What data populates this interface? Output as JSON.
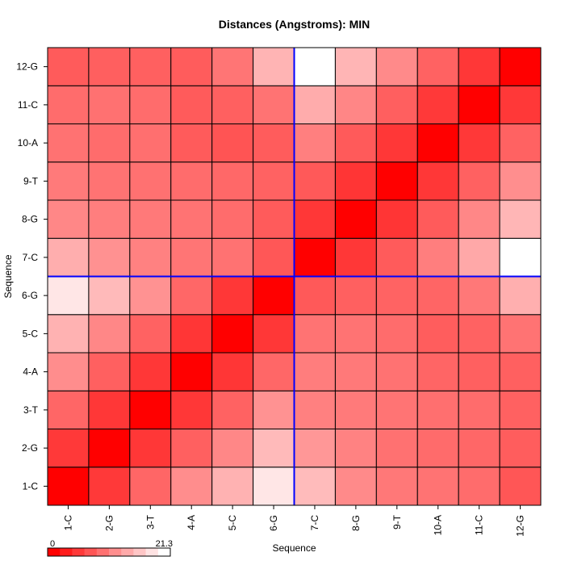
{
  "chart_data": {
    "type": "heatmap",
    "title": "Distances (Angstroms):  MIN",
    "xlabel": "Sequence",
    "ylabel": "Sequence",
    "x_categories": [
      "1-C",
      "2-G",
      "3-T",
      "4-A",
      "5-C",
      "6-G",
      "7-C",
      "8-G",
      "9-T",
      "10-A",
      "11-C",
      "12-G"
    ],
    "y_categories": [
      "1-C",
      "2-G",
      "3-T",
      "4-A",
      "5-C",
      "6-G",
      "7-C",
      "8-G",
      "9-T",
      "10-A",
      "11-C",
      "12-G"
    ],
    "values": [
      [
        0.0,
        4.8,
        8.5,
        11.8,
        14.9,
        19.2,
        15.6,
        11.5,
        10.0,
        9.6,
        9.0,
        7.2
      ],
      [
        4.8,
        0.0,
        4.6,
        8.0,
        11.3,
        15.5,
        12.6,
        10.9,
        9.4,
        8.9,
        8.6,
        7.8
      ],
      [
        8.5,
        4.6,
        0.0,
        4.6,
        8.2,
        12.2,
        10.7,
        10.2,
        9.7,
        9.3,
        9.0,
        8.1
      ],
      [
        11.8,
        8.0,
        4.6,
        0.0,
        4.5,
        8.6,
        10.4,
        10.1,
        9.5,
        8.4,
        8.0,
        8.0
      ],
      [
        14.9,
        11.3,
        8.2,
        4.5,
        0.0,
        4.6,
        9.6,
        9.6,
        9.0,
        7.8,
        8.2,
        9.6
      ],
      [
        19.2,
        15.5,
        12.2,
        8.6,
        4.6,
        0.0,
        7.4,
        8.0,
        8.3,
        8.4,
        10.0,
        14.6
      ],
      [
        14.5,
        12.1,
        10.8,
        9.8,
        9.5,
        7.3,
        0.0,
        4.6,
        7.6,
        10.5,
        14.0,
        21.3
      ],
      [
        11.3,
        10.5,
        10.1,
        9.6,
        9.0,
        7.6,
        4.6,
        0.0,
        4.4,
        7.6,
        11.3,
        15.2
      ],
      [
        10.2,
        9.6,
        9.4,
        9.0,
        8.7,
        8.2,
        7.4,
        4.4,
        0.0,
        4.6,
        8.1,
        11.9
      ],
      [
        9.5,
        9.0,
        9.3,
        7.6,
        7.0,
        7.7,
        10.6,
        7.5,
        4.6,
        0.0,
        4.7,
        8.2
      ],
      [
        9.0,
        9.4,
        9.0,
        7.6,
        8.0,
        9.6,
        14.4,
        11.2,
        7.9,
        4.8,
        0.0,
        4.7
      ],
      [
        7.6,
        7.9,
        8.0,
        7.7,
        9.8,
        15.0,
        21.3,
        15.1,
        11.5,
        8.2,
        4.6,
        0.0
      ]
    ],
    "value_range": [
      0,
      21.3
    ],
    "colorbar_labels": [
      "0",
      "21.3"
    ],
    "colorbar_steps": 10,
    "color_low": "#ff0000",
    "color_high": "#ffffff",
    "divider_after_index": 6,
    "divider_color": "#0000ff",
    "grid_color": "#000000"
  }
}
